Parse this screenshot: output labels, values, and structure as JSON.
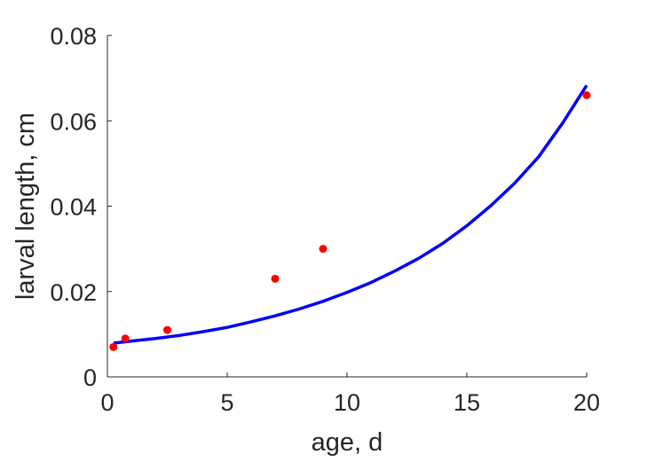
{
  "chart_data": {
    "type": "scatter",
    "title": "",
    "xlabel": "age, d",
    "ylabel": "larval length, cm",
    "xlim": [
      0,
      20
    ],
    "ylim": [
      0,
      0.08
    ],
    "xticks": [
      0,
      5,
      10,
      15,
      20
    ],
    "xtick_labels": [
      "0",
      "5",
      "10",
      "15",
      "20"
    ],
    "yticks": [
      0,
      0.02,
      0.04,
      0.06,
      0.08
    ],
    "ytick_labels": [
      "0",
      "0.02",
      "0.04",
      "0.06",
      "0.08"
    ],
    "grid": false,
    "box": false,
    "series": [
      {
        "type": "scatter",
        "color": "#ff0000",
        "x": [
          0.25,
          0.75,
          2.5,
          7,
          9,
          20
        ],
        "y": [
          0.007,
          0.009,
          0.011,
          0.023,
          0.03,
          0.066
        ]
      },
      {
        "type": "line",
        "color": "#0000ff",
        "x": [
          0.25,
          1,
          2,
          3,
          4,
          5,
          6,
          7,
          8,
          9,
          10,
          11,
          12,
          13,
          14,
          15,
          16,
          17,
          18,
          19,
          20
        ],
        "y": [
          0.0079,
          0.0084,
          0.009,
          0.0097,
          0.0106,
          0.0116,
          0.0129,
          0.0143,
          0.0159,
          0.0177,
          0.0198,
          0.0221,
          0.0248,
          0.0278,
          0.0313,
          0.0354,
          0.0401,
          0.0454,
          0.0516,
          0.0595,
          0.0683
        ]
      }
    ]
  }
}
